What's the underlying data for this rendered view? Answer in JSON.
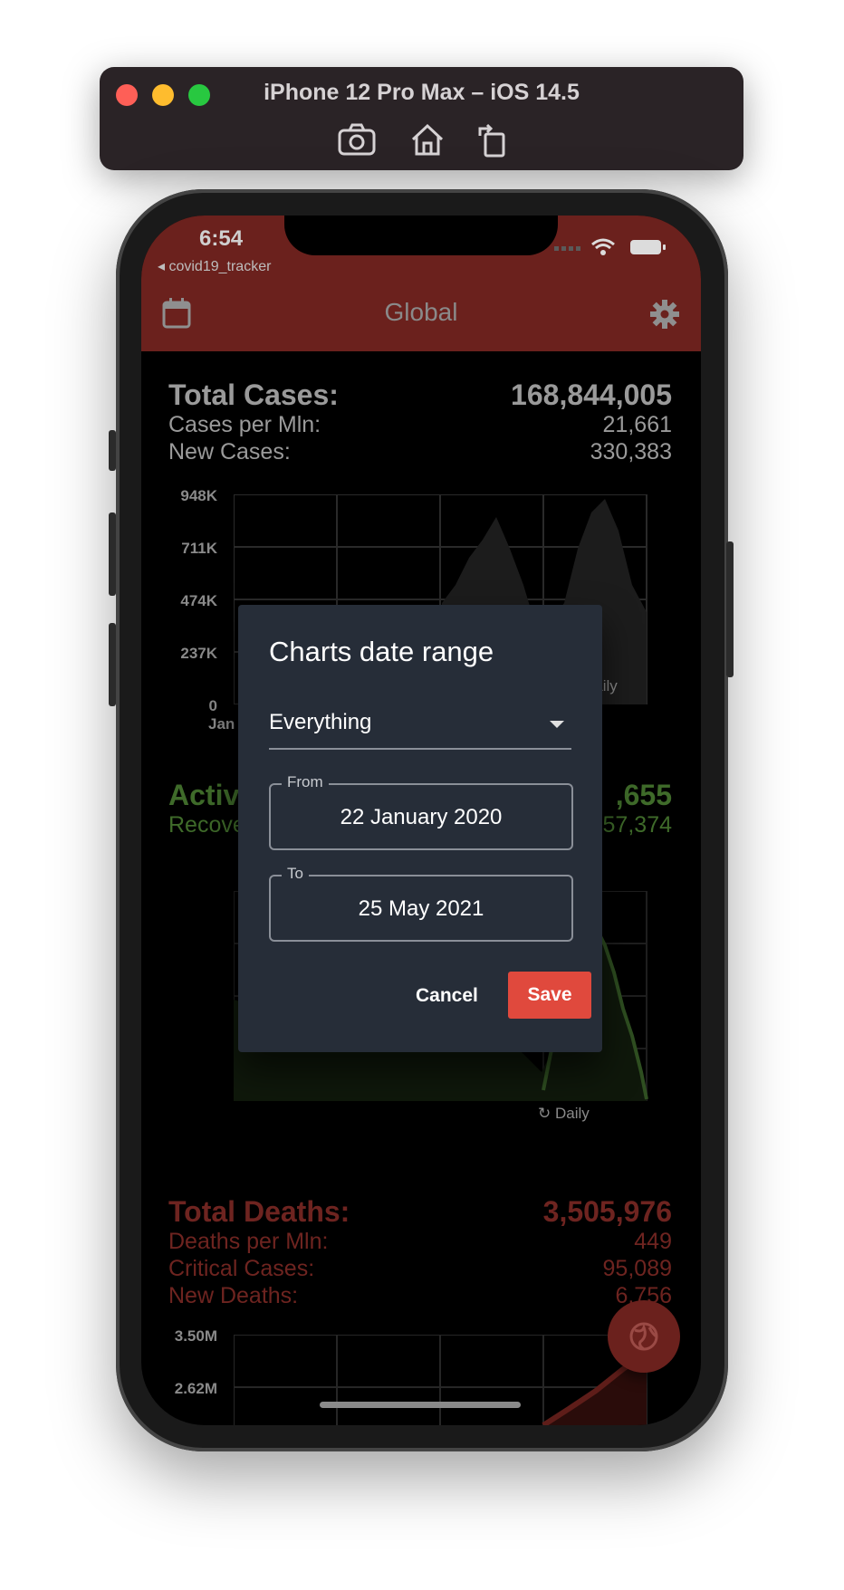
{
  "simulator": {
    "title": "iPhone 12 Pro Max – iOS 14.5",
    "tools": [
      "screenshot-icon",
      "home-icon",
      "rotate-icon"
    ]
  },
  "status_bar": {
    "time": "6:54",
    "back_app": "◂ covid19_tracker"
  },
  "app_bar": {
    "title": "Global",
    "left_icon": "calendar-icon",
    "right_icon": "gear-icon"
  },
  "cases": {
    "total_label": "Total Cases:",
    "total_value": "168,844,005",
    "per_mln_label": "Cases per Mln:",
    "per_mln_value": "21,661",
    "new_label": "New Cases:",
    "new_value": "330,383",
    "y_ticks": [
      "948K",
      "711K",
      "474K",
      "237K",
      "0"
    ],
    "x_tick_partial": "Jan",
    "mode": "Daily"
  },
  "active": {
    "label_partial": "Activ",
    "value_partial": ",655",
    "recovered_partial": "Recove",
    "recovered_value_partial": "57,374",
    "mode": "Daily"
  },
  "deaths": {
    "total_label": "Total Deaths:",
    "total_value": "3,505,976",
    "per_mln_label": "Deaths per Mln:",
    "per_mln_value": "449",
    "critical_label": "Critical Cases:",
    "critical_value": "95,089",
    "new_label": "New Deaths:",
    "new_value": "6,756",
    "y_ticks": [
      "3.50M",
      "2.62M"
    ]
  },
  "dialog": {
    "title": "Charts date range",
    "range_selected": "Everything",
    "from_label": "From",
    "from_value": "22 January 2020",
    "to_label": "To",
    "to_value": "25 May 2021",
    "cancel_label": "Cancel",
    "save_label": "Save"
  },
  "colors": {
    "app_bar": "#6b211d",
    "dialog_bg": "#262d38",
    "save_button": "#e0493d",
    "active_green": "#3f6b2a",
    "deaths_red": "#6e2420"
  }
}
